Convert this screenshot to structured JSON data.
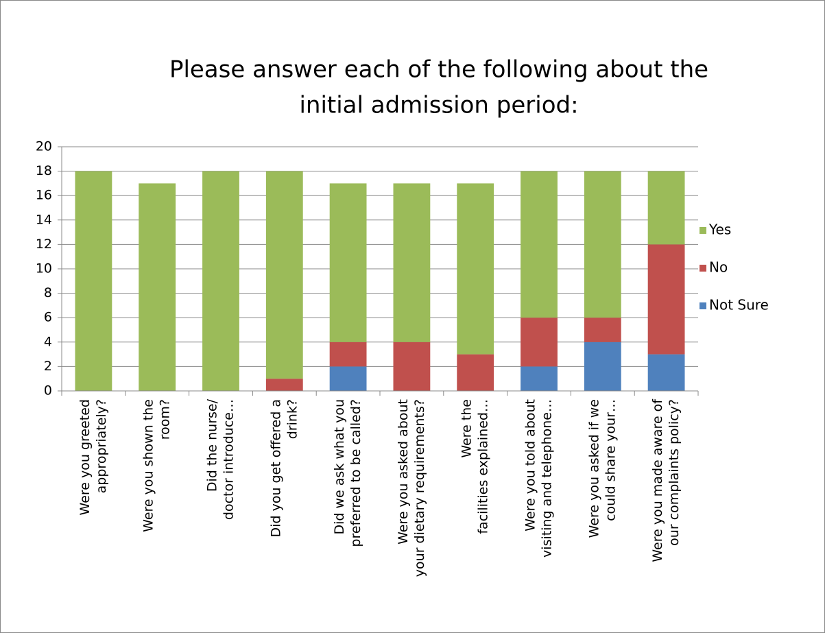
{
  "chart_data": {
    "type": "stacked_bar",
    "title": [
      "Please answer each of the following about the",
      "initial admission period:"
    ],
    "categories": [
      [
        "Were you greeted",
        "appropriately?"
      ],
      [
        "Were you shown the",
        "room?"
      ],
      [
        "Did the nurse/",
        "doctor  introduce…"
      ],
      [
        "Did you get offered a",
        "drink?"
      ],
      [
        "Did we ask what you",
        "preferred to be called?"
      ],
      [
        "Were you asked about",
        "your dietary requirements?"
      ],
      [
        "Were the",
        "facilities  explained…"
      ],
      [
        "Were you told about",
        "visiting and telephone…"
      ],
      [
        "Were you asked if we",
        "could share your…"
      ],
      [
        "Were you made aware of",
        "our complaints policy?"
      ]
    ],
    "series": [
      {
        "name": "Not Sure",
        "color": "#4f81bd",
        "values": [
          0,
          0,
          0,
          0,
          2,
          0,
          0,
          2,
          4,
          3
        ]
      },
      {
        "name": "No",
        "color": "#c0504d",
        "values": [
          0,
          0,
          0,
          1,
          2,
          4,
          3,
          4,
          2,
          9
        ]
      },
      {
        "name": "Yes",
        "color": "#9bbb59",
        "values": [
          18,
          17,
          18,
          17,
          13,
          13,
          14,
          12,
          12,
          6
        ]
      }
    ],
    "ylim": [
      0,
      20
    ],
    "yticks": [
      0,
      2,
      4,
      6,
      8,
      10,
      12,
      14,
      16,
      18,
      20
    ],
    "grid": true,
    "legend": "right"
  }
}
